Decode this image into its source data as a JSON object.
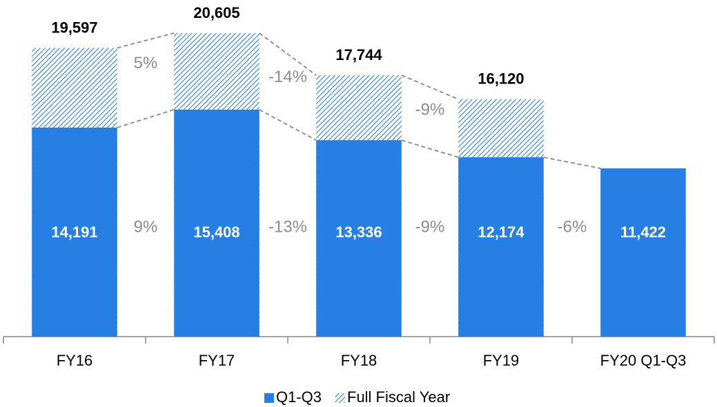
{
  "chart_data": {
    "type": "bar",
    "categories": [
      "FY16",
      "FY17",
      "FY18",
      "FY19",
      "FY20 Q1-Q3"
    ],
    "series": [
      {
        "name": "Q1-Q3",
        "color": "#2680e3",
        "pattern": "solid",
        "values": [
          14191,
          15408,
          13336,
          12174,
          11422
        ],
        "value_labels": [
          "14,191",
          "15,408",
          "13,336",
          "12,174",
          "11,422"
        ]
      },
      {
        "name": "Full Fiscal Year",
        "color": "#2680e3",
        "pattern": "hatch",
        "values": [
          19597,
          20605,
          17744,
          16120,
          null
        ],
        "value_labels": [
          "19,597",
          "20,605",
          "17,744",
          "16,120",
          null
        ]
      }
    ],
    "changes": {
      "q1_q3": {
        "values": [
          9,
          -13,
          -9,
          -6
        ],
        "value_labels": [
          "9%",
          "-13%",
          "-9%",
          "-6%"
        ]
      },
      "full_year": {
        "values": [
          5,
          -14,
          -9
        ],
        "value_labels": [
          "5%",
          "-14%",
          "-9%"
        ]
      }
    },
    "ylim": [
      0,
      22850
    ],
    "legend": "bottom"
  }
}
